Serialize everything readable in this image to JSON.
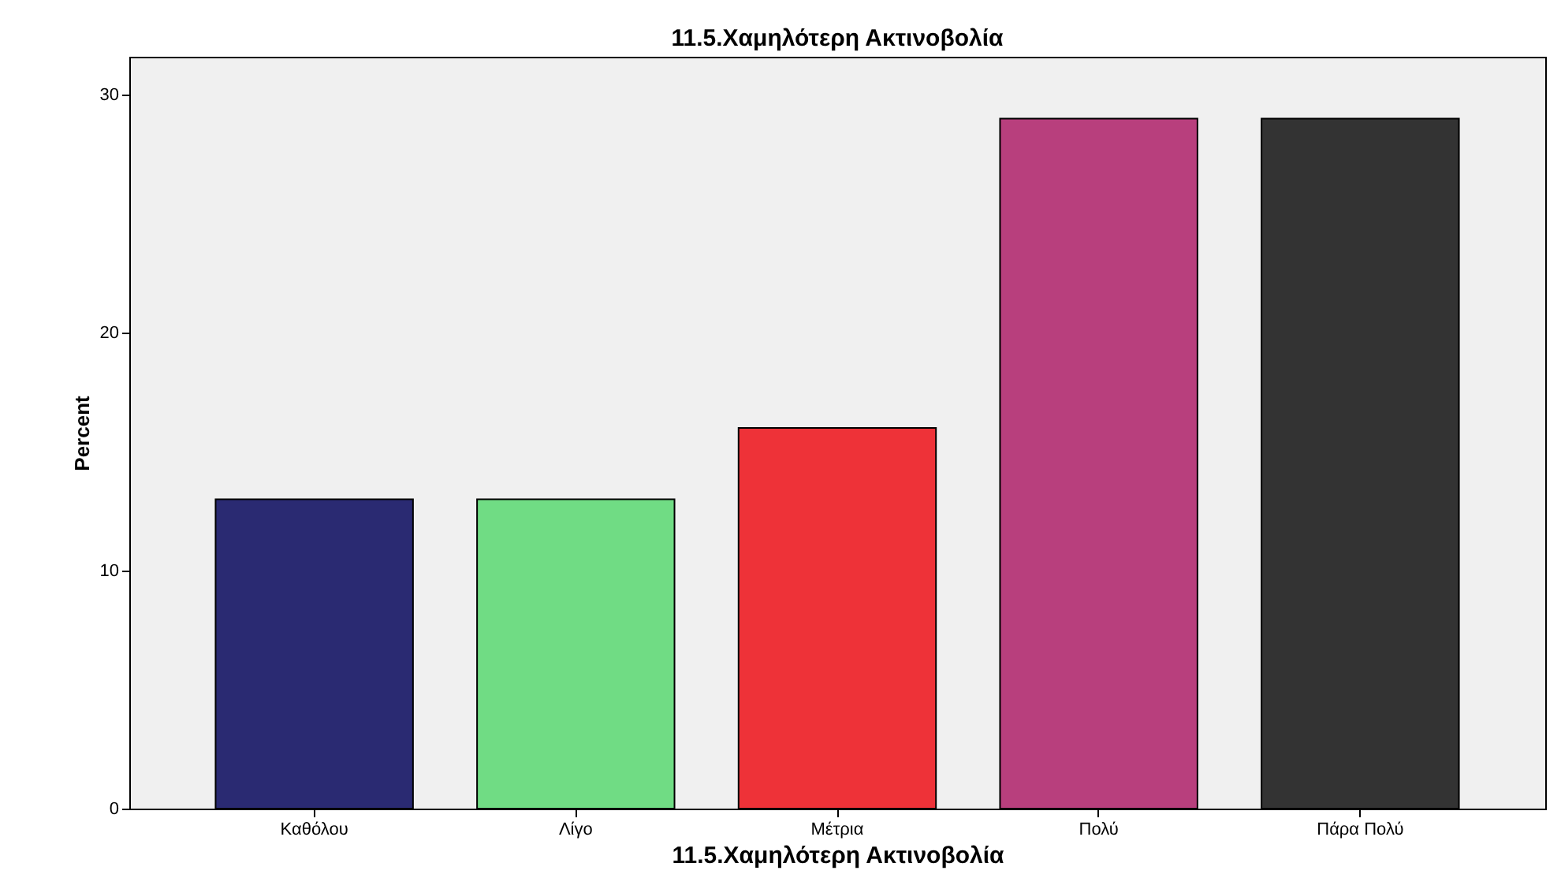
{
  "chart_data": {
    "type": "bar",
    "title": "11.5.Χαμηλότερη Ακτινοβολία",
    "xlabel": "11.5.Χαμηλότερη Ακτινοβολία",
    "ylabel": "Percent",
    "categories": [
      "Καθόλου",
      "Λίγο",
      "Μέτρια",
      "Πολύ",
      "Πάρα Πολύ"
    ],
    "values": [
      13,
      13,
      16,
      29,
      29
    ],
    "colors": [
      "#2a2a72",
      "#70dc84",
      "#ee3238",
      "#b83f7d",
      "#333333"
    ],
    "ylim": [
      0,
      31.6
    ],
    "yticks": [
      0,
      10,
      20,
      30
    ],
    "grid": false
  }
}
